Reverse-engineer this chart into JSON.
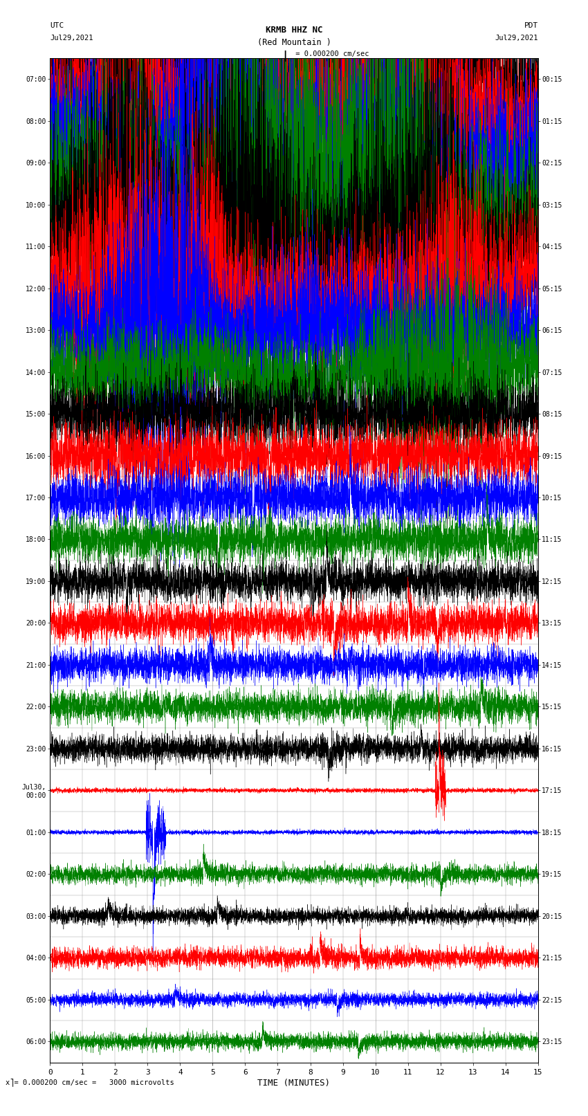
{
  "title_line1": "KRMB HHZ NC",
  "title_line2": "(Red Mountain )",
  "scale_text": "I = 0.000200 cm/sec",
  "bottom_scale_text": "x⎤= 0.000200 cm/sec =   3000 microvolts",
  "utc_label": "UTC",
  "utc_date": "Jul29,2021",
  "pdt_label": "PDT",
  "pdt_date": "Jul29,2021",
  "xlabel": "TIME (MINUTES)",
  "left_times_utc": [
    "07:00",
    "08:00",
    "09:00",
    "10:00",
    "11:00",
    "12:00",
    "13:00",
    "14:00",
    "15:00",
    "16:00",
    "17:00",
    "18:00",
    "19:00",
    "20:00",
    "21:00",
    "22:00",
    "23:00",
    "Jul30,\n00:00",
    "01:00",
    "02:00",
    "03:00",
    "04:00",
    "05:00",
    "06:00"
  ],
  "right_times_pdt": [
    "00:15",
    "01:15",
    "02:15",
    "03:15",
    "04:15",
    "05:15",
    "06:15",
    "07:15",
    "08:15",
    "09:15",
    "10:15",
    "11:15",
    "12:15",
    "13:15",
    "14:15",
    "15:15",
    "16:15",
    "17:15",
    "18:15",
    "19:15",
    "20:15",
    "21:15",
    "22:15",
    "23:15"
  ],
  "num_traces": 24,
  "minutes_per_trace": 15,
  "background_color": "#ffffff",
  "grid_color": "#888888",
  "trace_colors_cycle": [
    "black",
    "red",
    "blue",
    "green"
  ],
  "plot_area_bg": "#ffffff",
  "fig_width": 8.5,
  "fig_height": 16.13,
  "dpi": 100,
  "xlim": [
    0,
    15
  ],
  "xticks": [
    0,
    1,
    2,
    3,
    4,
    5,
    6,
    7,
    8,
    9,
    10,
    11,
    12,
    13,
    14,
    15
  ],
  "noise_seed": 42,
  "amplitudes": [
    2.0,
    2.0,
    2.0,
    2.0,
    1.8,
    1.5,
    1.2,
    1.0,
    0.8,
    0.7,
    0.6,
    0.5,
    0.45,
    0.42,
    0.38,
    0.35,
    0.3,
    0.05,
    0.05,
    0.2,
    0.18,
    0.22,
    0.15,
    0.18
  ],
  "spike_counts": [
    0,
    0,
    0,
    0,
    2,
    3,
    4,
    5,
    4,
    4,
    3,
    3,
    3,
    3,
    2,
    2,
    2,
    1,
    1,
    2,
    2,
    2,
    2,
    2
  ],
  "spike_amplitudes": [
    0,
    0,
    0,
    0,
    0.5,
    0.6,
    0.7,
    0.8,
    0.9,
    1.0,
    1.2,
    1.0,
    0.8,
    0.8,
    0.7,
    0.6,
    0.6,
    2.5,
    2.5,
    0.5,
    0.4,
    0.5,
    0.3,
    0.3
  ]
}
